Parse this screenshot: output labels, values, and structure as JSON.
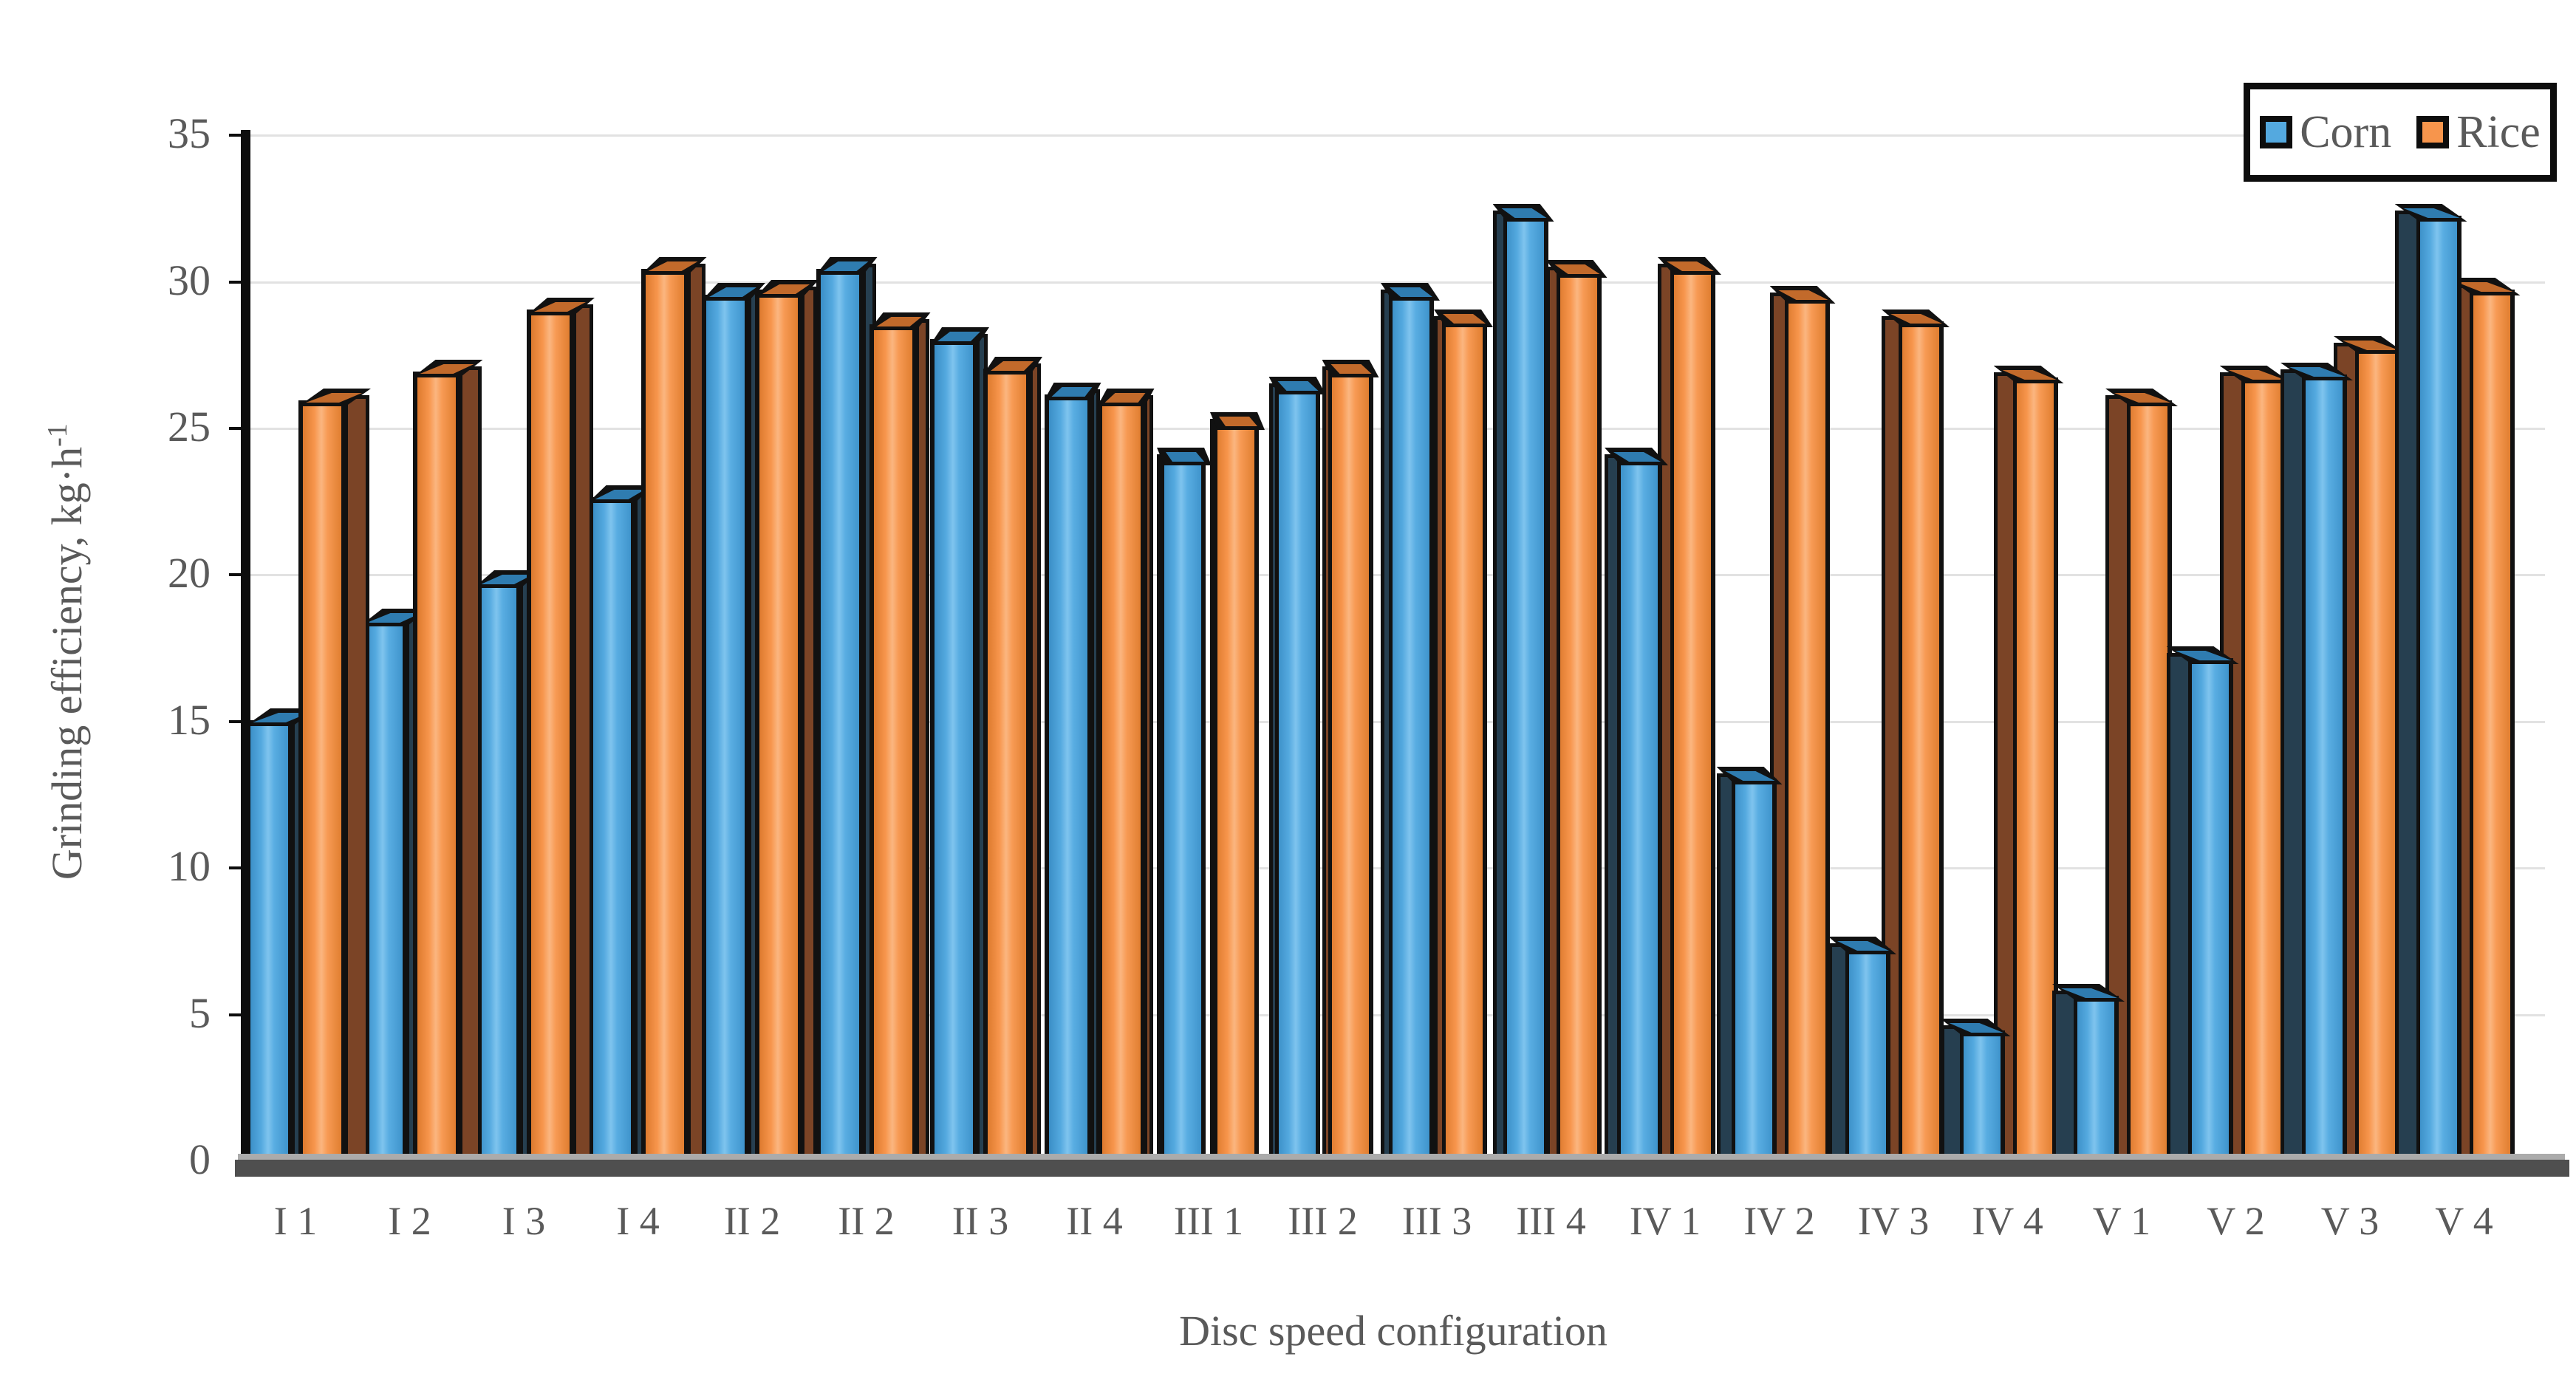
{
  "chart_data": {
    "type": "bar",
    "title": "",
    "xlabel": "Disc speed configuration",
    "ylabel": "Grinding efficiency, kg·h⁻¹",
    "ylabel_main": "Grinding efficiency, kg·h",
    "ylabel_sup": "-1",
    "ylim": [
      0,
      35
    ],
    "yticks": [
      0,
      5,
      10,
      15,
      20,
      25,
      30,
      35
    ],
    "grid": true,
    "legend_position": "top-right",
    "categories": [
      "I 1",
      "I 2",
      "I 3",
      "I 4",
      "II 2",
      "II 2",
      "II 3",
      "II 4",
      "III 1",
      "III 2",
      "III 3",
      "III 4",
      "IV 1",
      "IV 2",
      "IV 3",
      "IV 4",
      "V 1",
      "V 2",
      "V 3",
      "V 4"
    ],
    "series": [
      {
        "name": "Corn",
        "color": "#54A9DF",
        "side_color": "#263F50",
        "cap_color": "#2F7CB0",
        "values": [
          15.0,
          18.4,
          19.7,
          22.6,
          29.5,
          30.4,
          28.0,
          26.1,
          23.9,
          26.3,
          29.5,
          32.2,
          23.9,
          13.0,
          7.2,
          4.4,
          5.6,
          17.1,
          26.8,
          32.2
        ]
      },
      {
        "name": "Rice",
        "color": "#F7954C",
        "side_color": "#7B4426",
        "cap_color": "#C26A2B",
        "values": [
          25.9,
          26.9,
          29.0,
          30.4,
          29.6,
          28.5,
          27.0,
          25.9,
          25.1,
          26.9,
          28.6,
          30.3,
          30.4,
          29.4,
          28.6,
          26.7,
          25.9,
          26.7,
          27.7,
          29.7
        ]
      }
    ],
    "styles": {
      "axis_color": "#0d0d0d",
      "grid_color": "#e2e2e2",
      "text_color": "#5a5a5a",
      "corn_gradient": [
        "#3A8EC6",
        "#54A9DF",
        "#7FC4EE",
        "#59ADE2",
        "#3F94CC"
      ],
      "rice_gradient": [
        "#DD7A2E",
        "#F7954C",
        "#FBB680",
        "#F79A54",
        "#E07E30"
      ]
    }
  }
}
